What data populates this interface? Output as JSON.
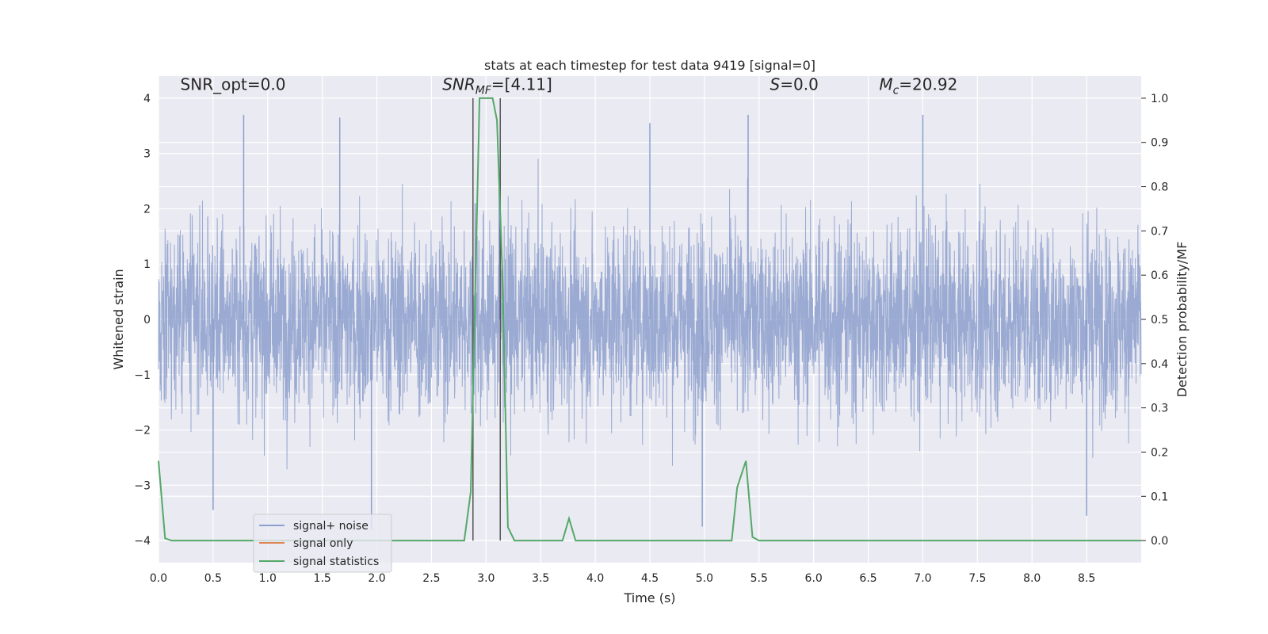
{
  "chart_data": {
    "type": "line",
    "title": "stats at each timestep for test data 9419 [signal=0]",
    "xlabel": "Time (s)",
    "ylabel": "Whitened strain",
    "y2label": "Detection probability/MF",
    "xlim": [
      0,
      9.0
    ],
    "ylim": [
      -4.4,
      4.4
    ],
    "y2lim": [
      -0.05,
      1.05
    ],
    "xticks": [
      "0.0",
      "0.5",
      "1.0",
      "1.5",
      "2.0",
      "2.5",
      "3.0",
      "3.5",
      "4.0",
      "4.5",
      "5.0",
      "5.5",
      "6.0",
      "6.5",
      "7.0",
      "7.5",
      "8.0",
      "8.5"
    ],
    "yticks": [
      "−4",
      "−3",
      "−2",
      "−1",
      "0",
      "1",
      "2",
      "3",
      "4"
    ],
    "y2ticks": [
      "0.0",
      "0.1",
      "0.2",
      "0.3",
      "0.4",
      "0.5",
      "0.6",
      "0.7",
      "0.8",
      "0.9",
      "1.0"
    ],
    "grid": true,
    "legend_position": "bottom-left",
    "colors": {
      "noise": "#8c9fcd",
      "signal": "#dd8452",
      "stats": "#55a868",
      "vline": "#555555",
      "bg": "#eaeaf2"
    },
    "annotations": [
      {
        "text": "SNR_opt=0.0",
        "x": 0.2,
        "y": 4.15
      },
      {
        "text": "SNR_MF=[4.11]",
        "x": 2.6,
        "y": 4.15
      },
      {
        "text": "S=0.0",
        "x": 5.6,
        "y": 4.15
      },
      {
        "text": "M_c=20.92",
        "x": 6.6,
        "y": 4.15
      }
    ],
    "vlines": [
      2.88,
      3.13
    ],
    "series": [
      {
        "name": "signal+ noise",
        "axis": "left",
        "note": "dense white noise, typical band about ±1.6, peaks up to about ±3.7",
        "amplitude_typical": 1.6,
        "amplitude_max": 3.7,
        "spikes": [
          {
            "x": 0.78,
            "y": 3.7
          },
          {
            "x": 1.66,
            "y": 3.65
          },
          {
            "x": 4.5,
            "y": 3.55
          },
          {
            "x": 5.4,
            "y": 3.7
          },
          {
            "x": 7.0,
            "y": 3.7
          },
          {
            "x": 2.9,
            "y": 2.1
          },
          {
            "x": 1.95,
            "y": -3.8
          },
          {
            "x": 4.98,
            "y": -3.75
          },
          {
            "x": 0.5,
            "y": -3.45
          },
          {
            "x": 8.5,
            "y": -3.55
          },
          {
            "x": 3.12,
            "y": 2.4
          }
        ]
      },
      {
        "name": "signal only",
        "axis": "left",
        "x": [],
        "y": []
      },
      {
        "name": "signal statistics",
        "axis": "right",
        "x": [
          0.0,
          0.06,
          0.12,
          2.8,
          2.86,
          2.94,
          3.0,
          3.06,
          3.1,
          3.15,
          3.2,
          3.26,
          3.7,
          3.76,
          3.82,
          5.25,
          5.3,
          5.38,
          5.44,
          5.5,
          9.0
        ],
        "y": [
          0.18,
          0.005,
          0.0,
          0.0,
          0.11,
          1.0,
          1.0,
          1.0,
          0.95,
          0.6,
          0.03,
          0.0,
          0.0,
          0.05,
          0.0,
          0.0,
          0.12,
          0.18,
          0.008,
          0.0,
          0.0
        ]
      }
    ]
  }
}
